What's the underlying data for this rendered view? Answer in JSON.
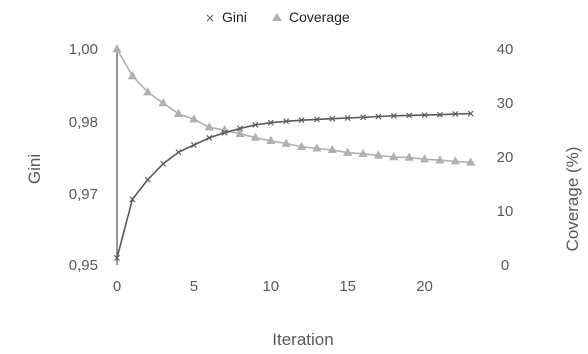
{
  "chart_data": {
    "type": "line",
    "title": "",
    "xlabel": "Iteration",
    "ylabel_left": "Gini",
    "ylabel_right": "Coverage (%)",
    "x": [
      0,
      1,
      2,
      3,
      4,
      5,
      6,
      7,
      8,
      9,
      10,
      11,
      12,
      13,
      14,
      15,
      16,
      17,
      18,
      19,
      20,
      21,
      22,
      23
    ],
    "x_ticks": [
      "0",
      "5",
      "10",
      "15",
      "20"
    ],
    "x_tick_values": [
      0,
      5,
      10,
      15,
      20
    ],
    "xlim": [
      0,
      23.8
    ],
    "y_left_ticks": [
      "0,95",
      "0,97",
      "0,98",
      "1,00"
    ],
    "y_left_tick_values": [
      0.95,
      0.97,
      0.98,
      1.0
    ],
    "y_right_ticks": [
      "0",
      "10",
      "20",
      "30",
      "40"
    ],
    "y_right_tick_values": [
      0,
      10,
      20,
      30,
      40
    ],
    "ylim_right": [
      0,
      40
    ],
    "grid": false,
    "legend_position": "top-center",
    "series": [
      {
        "name": "Gini",
        "axis": "left",
        "marker": "cross",
        "color": "#595959",
        "values": [
          0.952,
          0.9685,
          0.972,
          0.9742,
          0.9758,
          0.9768,
          0.9778,
          0.9785,
          0.9791,
          0.9796,
          0.9799,
          0.9802,
          0.9805,
          0.9807,
          0.9809,
          0.9811,
          0.9813,
          0.9815,
          0.9817,
          0.9818,
          0.9819,
          0.982,
          0.9822,
          0.9823
        ]
      },
      {
        "name": "Coverage",
        "axis": "right",
        "marker": "triangle",
        "color": "#b0b0b0",
        "values": [
          40.0,
          35.0,
          32.0,
          30.0,
          28.0,
          27.0,
          25.5,
          25.0,
          24.3,
          23.6,
          23.0,
          22.5,
          21.9,
          21.6,
          21.3,
          20.8,
          20.6,
          20.3,
          20.0,
          19.9,
          19.6,
          19.4,
          19.2,
          19.0
        ]
      }
    ]
  }
}
